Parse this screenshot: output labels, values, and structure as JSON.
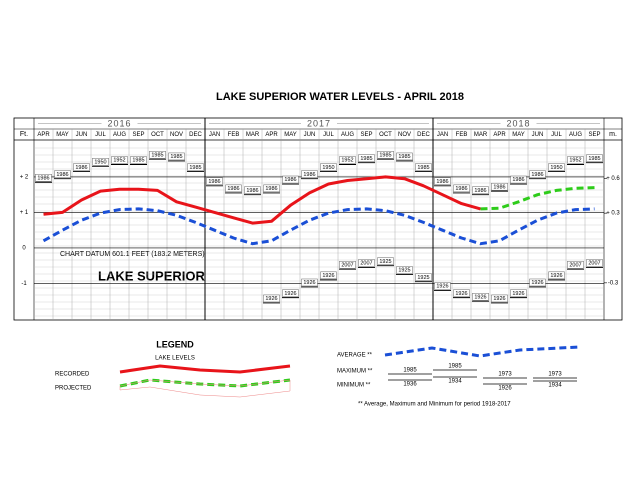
{
  "chart_data": {
    "type": "line",
    "title": "LAKE SUPERIOR WATER LEVELS - APRIL 2018",
    "y_axis_label": "Ft.",
    "y2_axis_label": "m.",
    "annotations": [
      "CHART DATUM  601.1 FEET (183.2 METERS)",
      "LAKE SUPERIOR"
    ],
    "years": [
      "2016",
      "2017",
      "2018"
    ],
    "categories": [
      "APR",
      "MAY",
      "JUN",
      "JUL",
      "AUG",
      "SEP",
      "OCT",
      "NOV",
      "DEC",
      "JAN",
      "FEB",
      "MAR",
      "APR",
      "MAY",
      "JUN",
      "JUL",
      "AUG",
      "SEP",
      "OCT",
      "NOV",
      "DEC",
      "JAN",
      "FEB",
      "MAR",
      "APR",
      "MAY",
      "JUN",
      "JUL",
      "AUG",
      "SEP"
    ],
    "ylim": [
      -2.03,
      3.04
    ],
    "yticks": [
      {
        "value": 2,
        "label": "+ 2"
      },
      {
        "value": 1,
        "label": "+ 1"
      },
      0,
      -1
    ],
    "y2lim": [
      -0.62,
      0.93
    ],
    "y2ticks": [
      {
        "value": 0.6,
        "label": "+ 0.6"
      },
      {
        "value": 0.3,
        "label": "+ 0.3"
      },
      -0.3
    ],
    "grid": true,
    "series": [
      {
        "name": "RECORDED",
        "color": "#e8141a",
        "style": "solid",
        "values": [
          0.95,
          1.0,
          1.35,
          1.6,
          1.65,
          1.65,
          1.62,
          1.3,
          1.15,
          1.0,
          0.85,
          0.7,
          0.75,
          1.2,
          1.55,
          1.8,
          1.9,
          1.95,
          2.0,
          1.95,
          1.75,
          1.5,
          1.25,
          1.1,
          null,
          null,
          null,
          null,
          null,
          null
        ]
      },
      {
        "name": "PROJECTED",
        "color": "#2ecc1a",
        "style": "dashed",
        "values": [
          null,
          null,
          null,
          null,
          null,
          null,
          null,
          null,
          null,
          null,
          null,
          null,
          null,
          null,
          null,
          null,
          null,
          null,
          null,
          null,
          null,
          null,
          null,
          1.1,
          1.12,
          1.3,
          1.5,
          1.62,
          1.68,
          1.7
        ]
      },
      {
        "name": "AVERAGE **",
        "color": "#1a4fd6",
        "style": "dashed",
        "values": [
          0.2,
          0.5,
          0.78,
          0.98,
          1.08,
          1.1,
          1.05,
          0.92,
          0.72,
          0.5,
          0.28,
          0.12,
          0.2,
          0.5,
          0.78,
          0.98,
          1.08,
          1.1,
          1.05,
          0.92,
          0.72,
          0.5,
          0.28,
          0.12,
          0.2,
          0.5,
          0.78,
          0.98,
          1.08,
          1.1
        ]
      },
      {
        "name": "MAXIMUM **",
        "color": "#000000",
        "style": "ticks",
        "values": [
          1.85,
          1.95,
          2.15,
          2.3,
          2.35,
          2.35,
          2.5,
          2.45,
          2.15,
          1.75,
          1.55,
          1.5,
          1.55,
          1.8,
          1.95,
          2.15,
          2.35,
          2.4,
          2.5,
          2.45,
          2.15,
          1.75,
          1.55,
          1.5,
          1.6,
          1.8,
          1.95,
          2.15,
          2.35,
          2.4
        ],
        "years": [
          "1986",
          "1986",
          "1986",
          "1950",
          "1952",
          "1985",
          "1985",
          "1985",
          "1985",
          "1986",
          "1986",
          "1986",
          "1986",
          "1986",
          "1986",
          "1950",
          "1952",
          "1985",
          "1985",
          "1985",
          "1985",
          "1986",
          "1986",
          "1986",
          "1986",
          "1986",
          "1986",
          "1950",
          "1952",
          "1985"
        ]
      },
      {
        "name": "MINIMUM **",
        "color": "#000000",
        "style": "ticks",
        "values": [
          null,
          null,
          null,
          null,
          null,
          null,
          null,
          null,
          null,
          null,
          null,
          null,
          -1.55,
          -1.4,
          -1.1,
          -0.9,
          -0.6,
          -0.55,
          -0.5,
          -0.75,
          -0.95,
          -1.2,
          -1.4,
          -1.5,
          -1.55,
          -1.4,
          -1.1,
          -0.9,
          -0.6,
          -0.55
        ],
        "years": [
          null,
          null,
          null,
          null,
          null,
          null,
          null,
          null,
          null,
          null,
          null,
          null,
          "1926",
          "1926",
          "1926",
          "1926",
          "2007",
          "2007",
          "1925",
          "1925",
          "1925",
          "1926",
          "1926",
          "1926",
          "1926",
          "1926",
          "1926",
          "1926",
          "2007",
          "2007"
        ]
      }
    ],
    "legend": {
      "title": "LEGEND",
      "subtitle": "LAKE LEVELS",
      "max_years": [
        "1985",
        "1985",
        "1973",
        "1973"
      ],
      "min_years": [
        "1936",
        "1934",
        "1926",
        "1934"
      ],
      "footnote": "** Average, Maximum and Minimum for period 1918-2017"
    }
  }
}
